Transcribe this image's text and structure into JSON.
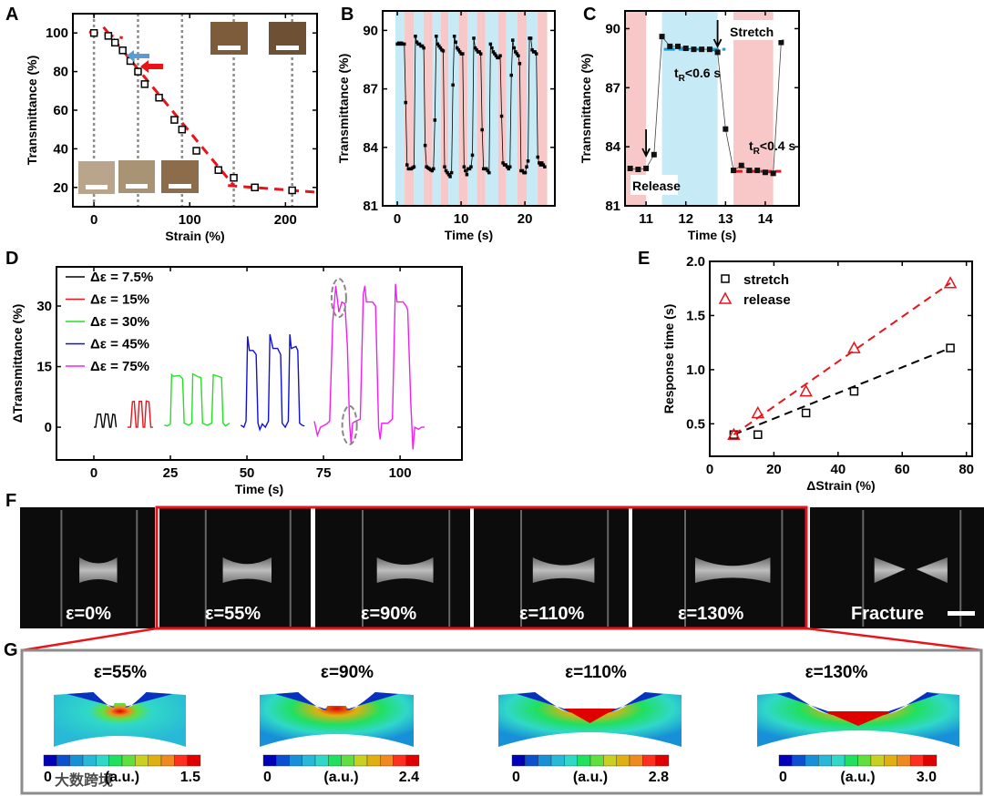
{
  "panels": {
    "A": "A",
    "B": "B",
    "C": "C",
    "D": "D",
    "E": "E",
    "F": "F",
    "G": "G"
  },
  "colors": {
    "stretch_band": "#c6eaf6",
    "release_band": "#f8c8c8",
    "fit_red": "#e8141a",
    "fit_blue": "#1aa0d8",
    "gray": "#8c8c8c"
  },
  "chart_data": [
    {
      "id": "A",
      "type": "scatter",
      "xlabel": "Strain (%)",
      "ylabel": "Transmittance (%)",
      "xlim": [
        -22,
        233
      ],
      "ylim": [
        10,
        110
      ],
      "xticks": [
        0,
        100,
        200
      ],
      "xtick_labels": [
        "0",
        "100",
        "200"
      ],
      "yticks": [
        20,
        40,
        60,
        80,
        100
      ],
      "ytick_labels": [
        "20",
        "40",
        "60",
        "80",
        "100"
      ],
      "points": [
        [
          0,
          100
        ],
        [
          15,
          98.5
        ],
        [
          22,
          95
        ],
        [
          30,
          91
        ],
        [
          38,
          85.5
        ],
        [
          46,
          80
        ],
        [
          53,
          73.5
        ],
        [
          68,
          66.5
        ],
        [
          84,
          55
        ],
        [
          92,
          50
        ],
        [
          107,
          39
        ],
        [
          130,
          29
        ],
        [
          146,
          25
        ],
        [
          168,
          20
        ],
        [
          207,
          18.5
        ]
      ],
      "fit_segments": [
        [
          [
            -5,
            100.5
          ],
          [
            30,
            97.5
          ]
        ],
        [
          [
            10,
            103
          ],
          [
            146,
            21
          ]
        ],
        [
          [
            140,
            21
          ],
          [
            233,
            17.5
          ]
        ]
      ],
      "photo_markers_x": [
        0,
        46,
        92,
        146,
        207
      ]
    },
    {
      "id": "B",
      "type": "line",
      "xlabel": "Time (s)",
      "ylabel": "Transmittance (%)",
      "xlim": [
        -2.3,
        24.7
      ],
      "ylim": [
        81,
        91
      ],
      "xticks": [
        0,
        10,
        20
      ],
      "xtick_labels": [
        "0",
        "10",
        "20"
      ],
      "yticks": [
        81,
        84,
        87,
        90
      ],
      "ytick_labels": [
        "81",
        "84",
        "87",
        "90"
      ],
      "bands": [
        [
          "stretch",
          -0.3,
          1.14
        ],
        [
          "release",
          1.14,
          2.6
        ],
        [
          "stretch",
          2.6,
          4.1
        ],
        [
          "release",
          4.1,
          5.5
        ],
        [
          "stretch",
          5.5,
          6.8
        ],
        [
          "release",
          6.8,
          8.0
        ],
        [
          "stretch",
          8.0,
          9.6
        ],
        [
          "release",
          9.6,
          11.0
        ],
        [
          "stretch",
          11.0,
          12.5
        ],
        [
          "release",
          12.5,
          13.8
        ],
        [
          "stretch",
          13.8,
          15.8
        ],
        [
          "release",
          15.8,
          17.1
        ],
        [
          "stretch",
          17.1,
          18.8
        ],
        [
          "release",
          18.8,
          20.3
        ],
        [
          "stretch",
          20.3,
          22.0
        ],
        [
          "release",
          22.0,
          23.5
        ]
      ],
      "t_start": 0,
      "t_step": 0.218,
      "values": [
        89.3,
        89.35,
        89.3,
        89.35,
        89.3,
        89.3,
        86.3,
        83.1,
        82.9,
        82.9,
        82.9,
        82.95,
        83.0,
        89.7,
        89.4,
        89.3,
        89.3,
        89.2,
        89.2,
        89.1,
        84.1,
        83.0,
        82.95,
        82.9,
        82.85,
        82.8,
        82.9,
        85.4,
        89.7,
        89.3,
        89.2,
        89.1,
        89.0,
        88.95,
        83.0,
        82.8,
        82.7,
        82.6,
        82.5,
        82.7,
        87.2,
        89.7,
        89.4,
        89.1,
        89.0,
        88.9,
        88.8,
        88.8,
        83.0,
        82.8,
        82.6,
        82.9,
        82.9,
        83.0,
        83.6,
        89.6,
        89.1,
        89.0,
        88.9,
        88.9,
        88.8,
        84.9,
        82.9,
        82.9,
        82.9,
        82.8,
        82.7,
        89.3,
        89.1,
        88.9,
        88.8,
        88.7,
        88.6,
        88.6,
        88.7,
        85.6,
        83.2,
        83.1,
        83.1,
        83.0,
        82.9,
        83.0,
        87.7,
        89.5,
        89.1,
        88.9,
        88.8,
        88.7,
        88.3,
        82.8,
        82.8,
        82.7,
        82.7,
        83.0,
        83.3,
        89.6,
        89.6,
        89.0,
        88.9,
        88.9,
        88.8,
        83.5,
        83.2,
        83.1,
        83.2,
        83.1,
        83.0
      ]
    },
    {
      "id": "C",
      "type": "line",
      "xlabel": "Time (s)",
      "ylabel": "Transmittance (%)",
      "xlim": [
        10.47,
        14.85
      ],
      "ylim": [
        81,
        90.9
      ],
      "xticks": [
        11,
        12,
        13,
        14
      ],
      "xtick_labels": [
        "11",
        "12",
        "13",
        "14"
      ],
      "yticks": [
        81,
        84,
        87,
        90
      ],
      "ytick_labels": [
        "81",
        "84",
        "87",
        "90"
      ],
      "bands": [
        [
          "release",
          10.47,
          11.0
        ],
        [
          "stretch",
          11.4,
          12.8
        ],
        [
          "release",
          13.2,
          14.2
        ]
      ],
      "points": [
        [
          10.6,
          82.9
        ],
        [
          10.8,
          82.85
        ],
        [
          11.0,
          82.9
        ],
        [
          11.2,
          83.6
        ],
        [
          11.4,
          89.6
        ],
        [
          11.6,
          89.1
        ],
        [
          11.8,
          89.1
        ],
        [
          12.0,
          89.0
        ],
        [
          12.2,
          88.95
        ],
        [
          12.4,
          88.95
        ],
        [
          12.6,
          88.95
        ],
        [
          12.8,
          88.8
        ],
        [
          13.0,
          84.9
        ],
        [
          13.2,
          82.8
        ],
        [
          13.4,
          83.05
        ],
        [
          13.6,
          82.8
        ],
        [
          13.8,
          82.8
        ],
        [
          14.0,
          82.7
        ],
        [
          14.2,
          82.65
        ],
        [
          14.4,
          89.3
        ]
      ],
      "levels": [
        {
          "color": "blue",
          "y": 88.95,
          "x": [
            11.45,
            13.0
          ]
        },
        {
          "color": "red",
          "y": 82.75,
          "x": [
            13.15,
            14.4
          ]
        }
      ],
      "annotations": {
        "stretch": "Stretch",
        "release": "Release",
        "tr_high": {
          "t": "t",
          "sub": "R",
          "rest": "<0.6 s"
        },
        "tr_low": {
          "t": "t",
          "sub": "R",
          "rest": "<0.4 s"
        }
      },
      "arrows_x": [
        11.0,
        12.8
      ]
    },
    {
      "id": "D",
      "type": "line",
      "xlabel": "Time (s)",
      "ylabel": "ΔTransmittance (%)",
      "xlim": [
        -12.2,
        120.2
      ],
      "ylim": [
        -8.1,
        39.7
      ],
      "xticks": [
        0,
        25,
        50,
        75,
        100
      ],
      "xtick_labels": [
        "0",
        "25",
        "50",
        "75",
        "100"
      ],
      "yticks": [
        0,
        15,
        30
      ],
      "ytick_labels": [
        "0",
        "15",
        "30"
      ],
      "series": [
        {
          "name": "Δε = 7.5%",
          "color": "#000000",
          "points": [
            [
              0,
              0
            ],
            [
              0.6,
              0
            ],
            [
              1.2,
              3.2
            ],
            [
              2.2,
              3.2
            ],
            [
              2.8,
              0
            ],
            [
              3.2,
              0
            ],
            [
              3.8,
              3.3
            ],
            [
              4.6,
              3.2
            ],
            [
              5.2,
              0
            ],
            [
              5.6,
              0
            ],
            [
              6.2,
              3.2
            ],
            [
              6.8,
              3.1
            ],
            [
              7.3,
              0
            ]
          ]
        },
        {
          "name": "Δε = 15%",
          "color": "#e8141a",
          "points": [
            [
              11,
              0
            ],
            [
              12,
              0
            ],
            [
              12.6,
              6.3
            ],
            [
              13.2,
              6.4
            ],
            [
              13.8,
              0
            ],
            [
              14.3,
              0
            ],
            [
              14.8,
              6.4
            ],
            [
              15.6,
              6.4
            ],
            [
              16.1,
              0
            ],
            [
              16.6,
              0
            ],
            [
              17.1,
              6.5
            ],
            [
              18,
              6.3
            ],
            [
              18.6,
              0
            ],
            [
              19.3,
              0
            ]
          ]
        },
        {
          "name": "Δε = 30%",
          "color": "#22e022",
          "points": [
            [
              23,
              0.5
            ],
            [
              24,
              0.3
            ],
            [
              25,
              0.8
            ],
            [
              25.4,
              13
            ],
            [
              26,
              12.6
            ],
            [
              28,
              12.8
            ],
            [
              29,
              12
            ],
            [
              29.5,
              1
            ],
            [
              31,
              0.5
            ],
            [
              32,
              1
            ],
            [
              32.3,
              13.2
            ],
            [
              34,
              12.5
            ],
            [
              35,
              12.3
            ],
            [
              35.5,
              1
            ],
            [
              37,
              0.5
            ],
            [
              38.5,
              1
            ],
            [
              39,
              13
            ],
            [
              41,
              12.5
            ],
            [
              41.7,
              12.3
            ],
            [
              42.2,
              1
            ],
            [
              43,
              0.3
            ],
            [
              44.3,
              1
            ]
          ]
        },
        {
          "name": "Δε = 45%",
          "color": "#1010d8",
          "points": [
            [
              48,
              0.5
            ],
            [
              49,
              0
            ],
            [
              49.7,
              1.5
            ],
            [
              50.2,
              22.5
            ],
            [
              50.8,
              19
            ],
            [
              52,
              19
            ],
            [
              53,
              18
            ],
            [
              53.6,
              1
            ],
            [
              54.2,
              -0.6
            ],
            [
              55,
              0.8
            ],
            [
              56,
              0
            ],
            [
              57,
              1.5
            ],
            [
              57.5,
              23
            ],
            [
              58.5,
              19.5
            ],
            [
              60,
              19.5
            ],
            [
              61,
              18
            ],
            [
              61.5,
              1
            ],
            [
              62.5,
              0
            ],
            [
              63.5,
              1.5
            ],
            [
              64,
              23
            ],
            [
              64.5,
              19.5
            ],
            [
              66,
              20
            ],
            [
              66.6,
              19
            ],
            [
              67.2,
              1
            ],
            [
              68,
              0.5
            ],
            [
              68.8,
              0.3
            ]
          ]
        },
        {
          "name": "Δε = 75%",
          "color": "#f020f0",
          "points": [
            [
              72,
              1.5
            ],
            [
              73,
              -2
            ],
            [
              74,
              0
            ],
            [
              76,
              0.8
            ],
            [
              77,
              1.5
            ],
            [
              78,
              26
            ],
            [
              79,
              35
            ],
            [
              80,
              28.5
            ],
            [
              81,
              31
            ],
            [
              82,
              30.5
            ],
            [
              82.8,
              20
            ],
            [
              83.5,
              1
            ],
            [
              84,
              -4
            ],
            [
              84.5,
              1
            ],
            [
              85.5,
              1.5
            ],
            [
              87,
              2
            ],
            [
              88,
              33
            ],
            [
              88.5,
              35
            ],
            [
              89,
              31
            ],
            [
              91,
              31
            ],
            [
              92,
              30
            ],
            [
              92.5,
              15
            ],
            [
              93,
              0
            ],
            [
              93.5,
              -3
            ],
            [
              94,
              1
            ],
            [
              96,
              1
            ],
            [
              97.5,
              2
            ],
            [
              98.5,
              35.5
            ],
            [
              99,
              31
            ],
            [
              101,
              31
            ],
            [
              102,
              30
            ],
            [
              102.5,
              29
            ],
            [
              103.5,
              6
            ],
            [
              104.2,
              -5.5
            ],
            [
              104.8,
              0
            ],
            [
              106,
              -0.5
            ],
            [
              107,
              0
            ],
            [
              108,
              0
            ]
          ]
        }
      ],
      "highlights": [
        [
          80,
          32
        ],
        [
          83.5,
          0.5
        ]
      ],
      "legend": "top-left"
    },
    {
      "id": "E",
      "type": "scatter",
      "xlabel": "ΔStrain (%)",
      "ylabel": "Response time (s)",
      "xlim": [
        0,
        81.8
      ],
      "ylim": [
        0.2,
        2.0
      ],
      "xticks": [
        0,
        20,
        40,
        60,
        80
      ],
      "xtick_labels": [
        "0",
        "20",
        "40",
        "60",
        "80"
      ],
      "yticks": [
        0.5,
        1.0,
        1.5,
        2.0
      ],
      "ytick_labels": [
        "0.5",
        "1.0",
        "1.5",
        "2.0"
      ],
      "series": [
        {
          "name": "stretch",
          "color": "#000000",
          "marker": "square",
          "points": [
            [
              7.5,
              0.4
            ],
            [
              15,
              0.4
            ],
            [
              30,
              0.6
            ],
            [
              45,
              0.8
            ],
            [
              75,
              1.2
            ]
          ]
        },
        {
          "name": "release",
          "color": "#e8141a",
          "marker": "triangle",
          "points": [
            [
              7.5,
              0.4
            ],
            [
              15,
              0.6
            ],
            [
              30,
              0.8
            ],
            [
              45,
              1.2
            ],
            [
              75,
              1.8
            ]
          ]
        }
      ],
      "legend": "top-left"
    }
  ],
  "panel_f": {
    "frames": [
      "ε=0%",
      "ε=55%",
      "ε=90%",
      "ε=110%",
      "ε=130%",
      "Fracture"
    ]
  },
  "panel_g": {
    "unit": "(a.u.)",
    "sims": [
      {
        "title": "ε=55%",
        "min": "0",
        "max": "1.5"
      },
      {
        "title": "ε=90%",
        "min": "0",
        "max": "2.4"
      },
      {
        "title": "ε=110%",
        "min": "0",
        "max": "2.8"
      },
      {
        "title": "ε=130%",
        "min": "0",
        "max": "3.0"
      }
    ],
    "colormap": [
      "#0000b8",
      "#0a50d0",
      "#1890d8",
      "#28b8d8",
      "#30d8c8",
      "#20e060",
      "#60e040",
      "#c8d020",
      "#e0b010",
      "#f08a20",
      "#ff3020",
      "#e00000"
    ]
  },
  "watermark": "大数跨境"
}
